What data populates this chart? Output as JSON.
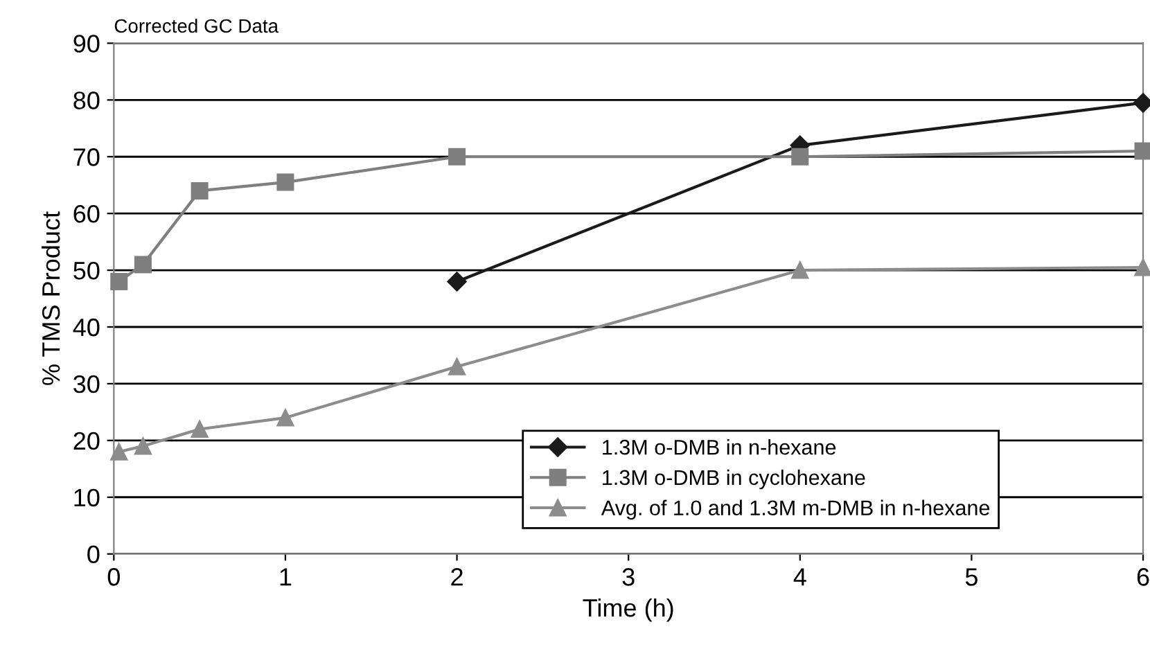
{
  "chart_data": {
    "type": "line",
    "title": "Corrected GC Data",
    "xlabel": "Time (h)",
    "ylabel": "% TMS Product",
    "xlim": [
      0,
      6
    ],
    "xticks": [
      0,
      1,
      2,
      3,
      4,
      5,
      6
    ],
    "ylim": [
      0,
      90
    ],
    "yticks": [
      0,
      10,
      20,
      30,
      40,
      50,
      60,
      70,
      80,
      90
    ],
    "grid": "y",
    "legend": "bottom right",
    "series": [
      {
        "name": "1.3M o-DMB in n-hexane",
        "color": "#1a1a1a",
        "marker": "diamond",
        "x": [
          2,
          4,
          6
        ],
        "values": [
          48,
          72,
          79.5
        ]
      },
      {
        "name": "1.3M o-DMB in cyclohexane",
        "color": "#7f7f7f",
        "marker": "square",
        "x": [
          0.03,
          0.17,
          0.5,
          1,
          2,
          4,
          6
        ],
        "values": [
          48,
          51,
          64,
          65.5,
          70,
          70,
          71
        ]
      },
      {
        "name": "Avg. of 1.0 and 1.3M m-DMB in n-hexane",
        "color": "#8c8c8c",
        "marker": "triangle",
        "x": [
          0.03,
          0.17,
          0.5,
          1,
          2,
          4,
          6
        ],
        "values": [
          18,
          19,
          22,
          24,
          33,
          50,
          50.5
        ]
      }
    ]
  }
}
